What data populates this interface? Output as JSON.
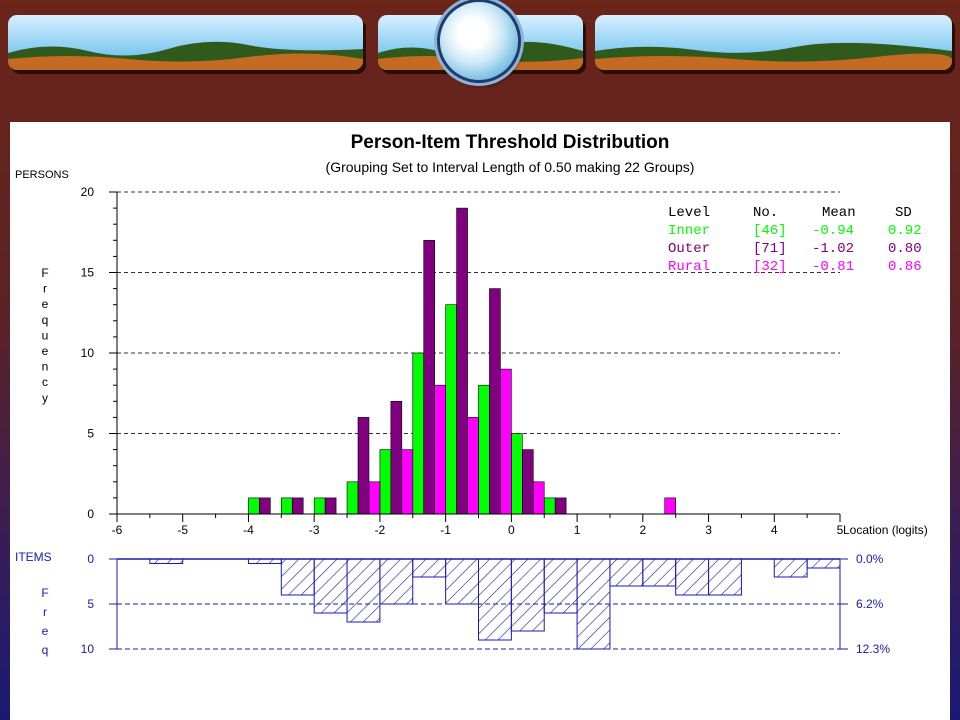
{
  "chart_data": [
    {
      "type": "bar",
      "title": "Person-Item Threshold Distribution",
      "subtitle": "(Grouping Set to Interval Length of 0.50  making 22 Groups)",
      "ylabel_top": "PERSONS",
      "ylabel": "Frequency",
      "xlabel": "Location (logits)",
      "xlim": [
        -6,
        5
      ],
      "ylim": [
        0,
        20
      ],
      "xticks": [
        "-6",
        "-5",
        "-4",
        "-3",
        "-2",
        "-1",
        "0",
        "1",
        "2",
        "3",
        "4",
        "5"
      ],
      "yticks": [
        "0",
        "5",
        "10",
        "15",
        "20"
      ],
      "bin_width": 0.5,
      "grid": "dashed horizontal",
      "legend_position": "top-right",
      "legend": {
        "headers": [
          "Level",
          "No.",
          "Mean",
          "SD"
        ],
        "rows": [
          {
            "level": "Inner",
            "n": "[46]",
            "mean": "-0.94",
            "sd": "0.92",
            "color": "#00ff00"
          },
          {
            "level": "Outer",
            "n": "[71]",
            "mean": "-1.02",
            "sd": "0.80",
            "color": "#800080"
          },
          {
            "level": "Rural",
            "n": "[32]",
            "mean": "-0.81",
            "sd": "0.86",
            "color": "#ff00ff"
          }
        ]
      },
      "bin_centers": [
        -3.75,
        -3.25,
        -2.75,
        -2.25,
        -1.75,
        -1.25,
        -0.75,
        -0.25,
        0.25,
        0.75,
        2.25
      ],
      "series": [
        {
          "name": "Inner",
          "color": "#00ff00",
          "values": [
            1,
            1,
            1,
            2,
            4,
            10,
            13,
            8,
            5,
            1,
            0
          ]
        },
        {
          "name": "Outer",
          "color": "#800080",
          "values": [
            1,
            1,
            1,
            6,
            7,
            17,
            19,
            14,
            4,
            1,
            0
          ]
        },
        {
          "name": "Rural",
          "color": "#ff00ff",
          "values": [
            0,
            0,
            0,
            2,
            4,
            8,
            6,
            9,
            2,
            0,
            1
          ]
        }
      ]
    },
    {
      "type": "bar",
      "ylabel_top": "ITEMS",
      "ylabel": "Freq",
      "orientation": "downward",
      "pattern": "diagonal hatch",
      "yticks": [
        "0",
        "5",
        "10"
      ],
      "ylim": [
        0,
        10
      ],
      "right_ticks": [
        "0.0%",
        "6.2%",
        "12.3%"
      ],
      "bins": [
        {
          "x0": -5.5,
          "x1": -5.0,
          "value": 0.5
        },
        {
          "x0": -4.0,
          "x1": -3.5,
          "value": 0.5
        },
        {
          "x0": -3.5,
          "x1": -3.0,
          "value": 4
        },
        {
          "x0": -3.0,
          "x1": -2.5,
          "value": 6
        },
        {
          "x0": -2.5,
          "x1": -2.0,
          "value": 7
        },
        {
          "x0": -2.0,
          "x1": -1.5,
          "value": 5
        },
        {
          "x0": -1.5,
          "x1": -1.0,
          "value": 2
        },
        {
          "x0": -1.0,
          "x1": -0.5,
          "value": 5
        },
        {
          "x0": -0.5,
          "x1": 0.0,
          "value": 9
        },
        {
          "x0": 0.0,
          "x1": 0.5,
          "value": 8
        },
        {
          "x0": 0.5,
          "x1": 1.0,
          "value": 6
        },
        {
          "x0": 1.0,
          "x1": 1.5,
          "value": 10
        },
        {
          "x0": 1.5,
          "x1": 2.0,
          "value": 3
        },
        {
          "x0": 2.0,
          "x1": 2.5,
          "value": 3
        },
        {
          "x0": 2.5,
          "x1": 3.0,
          "value": 4
        },
        {
          "x0": 3.0,
          "x1": 3.5,
          "value": 4
        },
        {
          "x0": 4.0,
          "x1": 4.5,
          "value": 2
        },
        {
          "x0": 4.5,
          "x1": 5.0,
          "value": 1
        }
      ]
    }
  ]
}
